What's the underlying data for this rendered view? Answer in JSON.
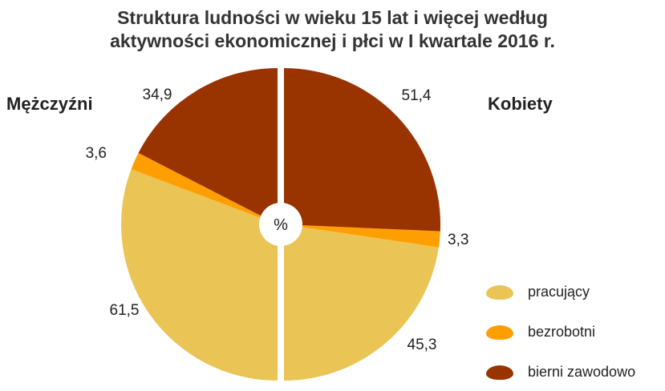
{
  "title_line1": "Struktura ludności w wieku 15 lat i więcej według",
  "title_line2": "aktywności ekonomicznej i płci w I kwartale 2016 r.",
  "center_label": "%",
  "colors": {
    "pracujacy": "#EAC455",
    "bezrobotni": "#FF9E00",
    "bierni": "#993300"
  },
  "chart_data": [
    {
      "type": "pie",
      "title": "Mężczyźni",
      "categories": [
        "pracujący",
        "bezrobotni",
        "bierni zawodowo"
      ],
      "values": [
        61.5,
        3.6,
        34.9
      ],
      "labels": [
        "61,5",
        "3,6",
        "34,9"
      ]
    },
    {
      "type": "pie",
      "title": "Kobiety",
      "categories": [
        "pracujący",
        "bezrobotni",
        "bierni zawodowo"
      ],
      "values": [
        45.3,
        3.3,
        51.4
      ],
      "labels": [
        "45,3",
        "3,3",
        "51,4"
      ]
    }
  ],
  "legend": [
    {
      "label": "pracujący",
      "color": "#EAC455"
    },
    {
      "label": "bezrobotni",
      "color": "#FF9E00"
    },
    {
      "label": "bierni zawodowo",
      "color": "#993300"
    }
  ]
}
